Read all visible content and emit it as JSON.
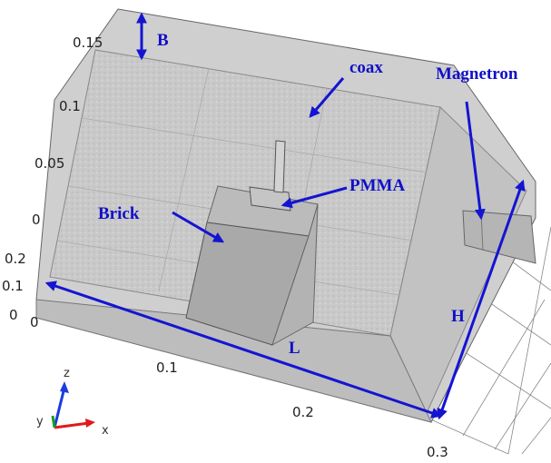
{
  "labels": {
    "b": "B",
    "coax": "coax",
    "magnetron": "Magnetron",
    "pmma": "PMMA",
    "brick": "Brick",
    "h": "H",
    "l": "L"
  },
  "z_ticks": [
    "0.15",
    "0.1",
    "0.05",
    "0"
  ],
  "y_ticks": [
    "0.2",
    "0.1",
    "0"
  ],
  "x_ticks": [
    "0",
    "0.1",
    "0.2",
    "0.3"
  ],
  "triad": {
    "z": "z",
    "y": "y",
    "x": "x"
  }
}
